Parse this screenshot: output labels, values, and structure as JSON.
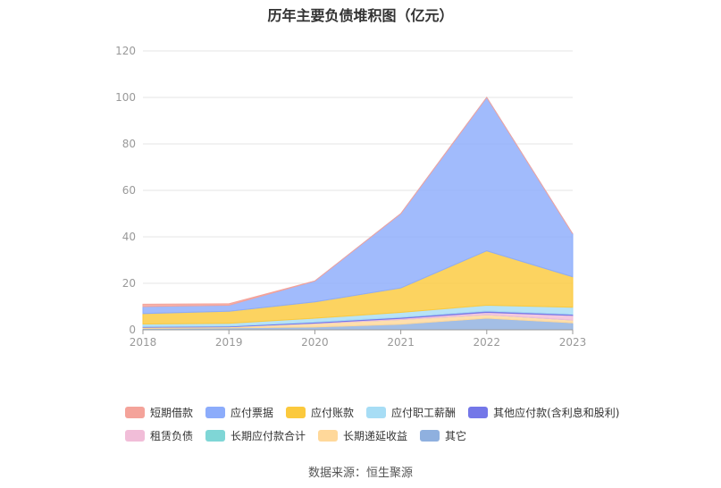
{
  "chart_data": {
    "type": "area",
    "stacked": true,
    "title": "历年主要负债堆积图（亿元）",
    "xlabel": "",
    "ylabel": "",
    "x": [
      "2018",
      "2019",
      "2020",
      "2021",
      "2022",
      "2023"
    ],
    "ylim": [
      0,
      120
    ],
    "yticks": [
      0,
      20,
      40,
      60,
      80,
      100,
      120
    ],
    "grid": true,
    "legend_position": "bottom",
    "series": [
      {
        "name": "其它",
        "color": "#8fb0df",
        "values": [
          0.6,
          0.8,
          1.2,
          2.4,
          5.0,
          3.0
        ]
      },
      {
        "name": "长期递延收益",
        "color": "#ffd89a",
        "values": [
          0.5,
          0.5,
          1.5,
          2.0,
          1.5,
          1.2
        ]
      },
      {
        "name": "长期应付款合计",
        "color": "#7fd6d6",
        "values": [
          0.0,
          0.0,
          0.0,
          0.0,
          0.0,
          0.0
        ]
      },
      {
        "name": "租赁负债",
        "color": "#f1bdd8",
        "values": [
          0.0,
          0.0,
          0.2,
          0.5,
          1.0,
          2.0
        ]
      },
      {
        "name": "其他应付款(含利息和股利)",
        "color": "#7477e8",
        "values": [
          0.3,
          0.3,
          0.4,
          0.5,
          0.6,
          0.5
        ]
      },
      {
        "name": "应付职工薪酬",
        "color": "#a7ddf5",
        "values": [
          1.1,
          1.2,
          1.7,
          2.1,
          2.5,
          3.0
        ]
      },
      {
        "name": "应付账款",
        "color": "#fbc93d",
        "values": [
          4.5,
          5.2,
          7.0,
          10.5,
          23.4,
          13.1
        ]
      },
      {
        "name": "应付票据",
        "color": "#8cacfb",
        "values": [
          3.0,
          2.6,
          9.0,
          32.0,
          66.0,
          18.5
        ]
      },
      {
        "name": "短期借款",
        "color": "#f4a39a",
        "values": [
          1.0,
          0.6,
          0.0,
          0.0,
          0.0,
          0.0
        ]
      }
    ],
    "legend_order": [
      "短期借款",
      "应付票据",
      "应付账款",
      "应付职工薪酬",
      "其他应付款(含利息和股利)",
      "租赁负债",
      "长期应付款合计",
      "长期递延收益",
      "其它"
    ]
  },
  "source_note": "数据来源：恒生聚源"
}
